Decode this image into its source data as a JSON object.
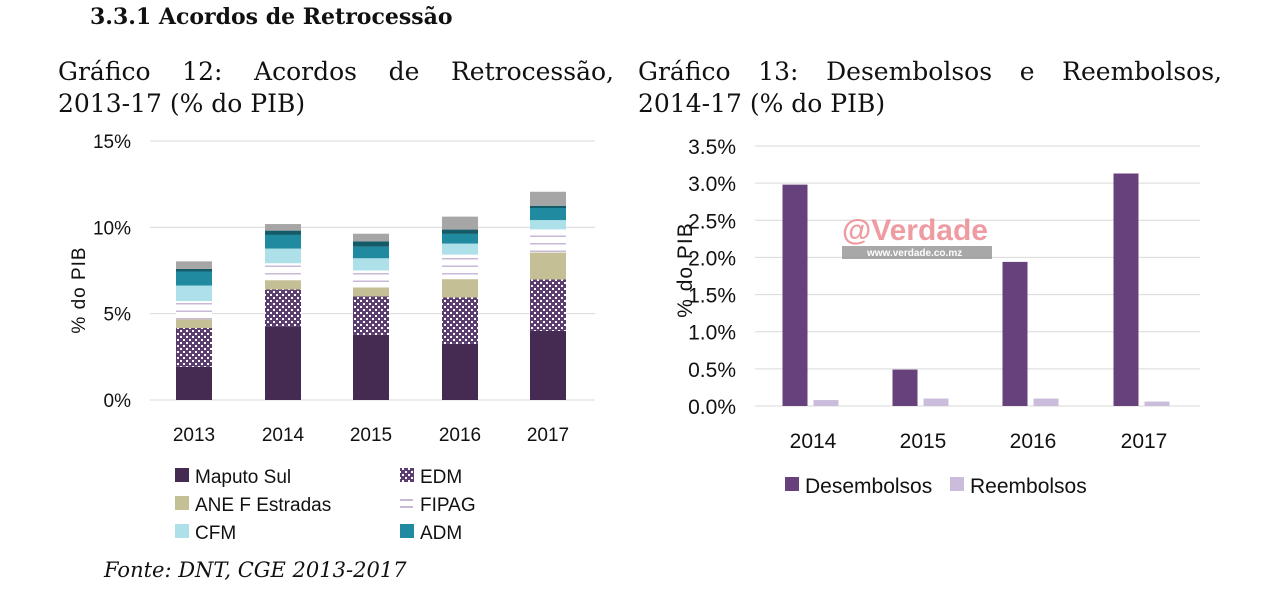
{
  "heading": "3.3.1 Acordos de Retrocessão",
  "source": "Fonte: DNT, CGE 2013-2017",
  "watermark": {
    "brand": "@Verdade",
    "url": "www.verdade.co.mz"
  },
  "chart_data": [
    {
      "type": "bar",
      "stacked": true,
      "title_line1": "Gráfico 12: Acordos de Retrocessão,",
      "title_line2": "2013-17 (% do PIB)",
      "ylabel": "% do PIB",
      "ylim": [
        0,
        15
      ],
      "yticks": [
        "0%",
        "5%",
        "10%",
        "15%"
      ],
      "ytick_values": [
        0,
        5,
        10,
        15
      ],
      "grid": true,
      "legend": "bottom",
      "categories": [
        "2013",
        "2014",
        "2015",
        "2016",
        "2017"
      ],
      "series": [
        {
          "name": "Maputo Sul",
          "color": "#452a52",
          "values": [
            1.92,
            4.23,
            3.77,
            3.25,
            4.0
          ]
        },
        {
          "name": "EDM",
          "color": "#5c3d70",
          "pattern": "checker",
          "values": [
            2.25,
            2.17,
            2.23,
            2.69,
            2.98
          ]
        },
        {
          "name": "ANE F Estradas",
          "color": "#c4bf94",
          "values": [
            0.5,
            0.54,
            0.52,
            1.06,
            1.56
          ]
        },
        {
          "name": "FIPAG",
          "color": "#c9b8d6",
          "pattern": "lines",
          "values": [
            1.06,
            0.98,
            0.98,
            1.42,
            1.34
          ]
        },
        {
          "name": "CFM",
          "color": "#aee0ea",
          "values": [
            0.9,
            0.85,
            0.71,
            0.64,
            0.54
          ]
        },
        {
          "name": "ADM",
          "color": "#1f8aa0",
          "values": [
            0.81,
            0.79,
            0.67,
            0.56,
            0.7
          ]
        },
        {
          "color": "#135b68",
          "values": [
            0.15,
            0.25,
            0.31,
            0.25,
            0.13
          ]
        },
        {
          "color": "#a6a6a6",
          "values": [
            0.44,
            0.38,
            0.44,
            0.75,
            0.81
          ]
        }
      ]
    },
    {
      "type": "bar",
      "title_line1": "Gráfico 13: Desembolsos e Reembolsos,",
      "title_line2": "2014-17 (% do PIB)",
      "ylabel": "% do PIB",
      "ylim": [
        0,
        3.5
      ],
      "yticks": [
        "0.0%",
        "0.5%",
        "1.0%",
        "1.5%",
        "2.0%",
        "2.5%",
        "3.0%",
        "3.5%"
      ],
      "ytick_values": [
        0,
        0.5,
        1,
        1.5,
        2,
        2.5,
        3,
        3.5
      ],
      "grid": true,
      "legend": "bottom",
      "categories": [
        "2014",
        "2015",
        "2016",
        "2017"
      ],
      "series": [
        {
          "name": "Desembolsos",
          "color": "#66417c",
          "values": [
            2.98,
            0.49,
            1.94,
            3.13
          ]
        },
        {
          "name": "Reembolsos",
          "color": "#cbbcdb",
          "values": [
            0.08,
            0.1,
            0.1,
            0.06
          ]
        }
      ]
    }
  ]
}
